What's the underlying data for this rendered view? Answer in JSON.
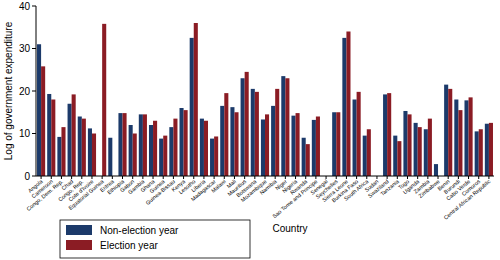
{
  "chart_data": {
    "type": "bar",
    "title": null,
    "x_label": "Country",
    "y_label": "Log of government expenditure",
    "categories": [
      "Angola",
      "Cameroon",
      "Congo, Dem. Rep.",
      "Chad",
      "Congo, Rep.",
      "Cote d'Ivoire",
      "Equatorial Guinea",
      "Eritrea",
      "Ethiopia",
      "Gabon",
      "Gambia",
      "Ghana",
      "Guinea",
      "Guinea-Bissau",
      "Kenya",
      "Lesotho",
      "Liberia",
      "Madagascar",
      "Malawi",
      "Mali",
      "Mauritius",
      "Botswana",
      "Mozambique",
      "Namibia",
      "Niger",
      "Nigeria",
      "Rwanda",
      "Sao Tome and Principe",
      "Senegal",
      "Seychelles",
      "Sierra Leone",
      "Burkina Faso",
      "South Africa",
      "Sudan",
      "Swaziland",
      "Tanzania",
      "Togo",
      "Uganda",
      "Zambia",
      "Zimbabwe",
      "Benin",
      "Burundi",
      "Cabo Verde",
      "Comoros",
      "Central African Republic"
    ],
    "series": [
      {
        "name": "Non-election year",
        "color": "#1c3a6a",
        "values": [
          31,
          19.3,
          9.2,
          17,
          14,
          11.2,
          0,
          9,
          14.8,
          12,
          14.5,
          12,
          8.8,
          11.5,
          16,
          32.5,
          13.5,
          8.8,
          16.5,
          16.2,
          23,
          20.5,
          13.3,
          16.5,
          23.5,
          14.2,
          9,
          13.2,
          0,
          15,
          32.5,
          18,
          9.5,
          0,
          19.2,
          9.5,
          15.3,
          12.5,
          11,
          2.8,
          21.5,
          18,
          17.8,
          10.5,
          12.3
        ]
      },
      {
        "name": "Election year",
        "color": "#8b1c24",
        "values": [
          25.8,
          18,
          11.5,
          19.2,
          13.5,
          10,
          35.8,
          0,
          14.8,
          10,
          14.5,
          13,
          9.5,
          13.5,
          15.5,
          36,
          13,
          9.3,
          19.5,
          15,
          24.5,
          19.8,
          14.5,
          20.5,
          23,
          14.8,
          7.5,
          14,
          0,
          15,
          34,
          19.8,
          11,
          0,
          19.5,
          8.2,
          14.5,
          11.5,
          13.5,
          0,
          20.5,
          15.5,
          18.5,
          11,
          12.5
        ]
      }
    ],
    "ylim": [
      0,
      40
    ],
    "yticks": [
      0,
      10,
      20,
      30,
      40
    ],
    "grid": false,
    "legend": "bottom-left"
  }
}
